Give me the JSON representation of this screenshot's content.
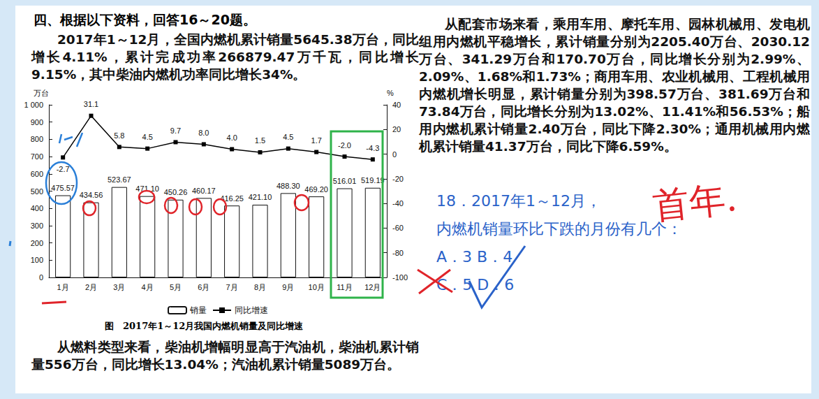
{
  "heading": "四、根据以下资料，回答16～20题。",
  "paragraphs": [
    "2017年1～12月，全国内燃机累计销量5645.38万台，同比增长4.11%，累计完成功率266879.47万千瓦，同比增长9.15%，其中柴油内燃机功率同比增长34%。",
    "从燃料类型来看，柴油机增幅明显高于汽油机，柴油机累计销量556万台，同比增长13.04%；汽油机累计销量5089万台。",
    "从配套市场来看，乘用车用、摩托车用、园林机械用、发电机组用内燃机平稳增长，累计销量分别为2205.40万台、2030.12万台、341.29万台和170.70万台，同比增长分别为2.99%、2.09%、1.68%和1.73%；商用车用、农业机械用、工程机械用内燃机增长明显，累计销量分别为398.57万台、381.69万台和73.84万台，同比增长分别为13.02%、11.41%和56.53%；船用内燃机累计销量2.40万台，同比下降2.30%；通用机械用内燃机累计销量41.37万台，同比下降6.59%。"
  ],
  "chart_data": {
    "type": "bar",
    "caption": "图　2017年1～12月我国内燃机销量及同比增速",
    "y_label": "万台",
    "y2_label": "%",
    "categories": [
      "1月",
      "2月",
      "3月",
      "4月",
      "5月",
      "6月",
      "7月",
      "8月",
      "9月",
      "10月",
      "11月",
      "12月"
    ],
    "ylim": [
      0,
      1000
    ],
    "yticks": [
      0,
      100,
      200,
      300,
      400,
      500,
      600,
      700,
      800,
      900,
      {
        "value": 1000,
        "label": "1 000"
      }
    ],
    "y2lim": [
      -100,
      40
    ],
    "y2ticks": [
      -100,
      -80,
      -60,
      -40,
      -20,
      0,
      20,
      40
    ],
    "grid": false,
    "legend": "bottom",
    "data_labels": true,
    "series": [
      {
        "name": "销量",
        "type": "bar",
        "color": "#ffffff",
        "values": [
          475.57,
          434.56,
          523.67,
          471.1,
          450.26,
          460.17,
          416.25,
          421.1,
          488.3,
          469.2,
          516.01,
          519.19
        ],
        "value_labels": [
          "475.57",
          "434.56",
          "523.67",
          "471.10",
          "450.26",
          "460.17",
          "416.25",
          "421.10",
          "488.30",
          "469.20",
          "516.01",
          "519.19"
        ]
      },
      {
        "name": "同比增速",
        "type": "line",
        "axis": "y2",
        "color": "#000000",
        "marker": "square",
        "values": [
          -2.7,
          31.1,
          5.8,
          4.5,
          9.7,
          8.0,
          4.0,
          1.5,
          4.5,
          1.7,
          -2.0,
          -4.3
        ],
        "value_labels": [
          "-2.7",
          "31.1",
          "5.8",
          "4.5",
          "9.7",
          "8.0",
          "4.0",
          "1.5",
          "4.5",
          "1.7",
          "-2.0",
          "-4.3"
        ]
      }
    ]
  },
  "question": {
    "stem": [
      "18．2017年1～12月，",
      "内燃机销量环比下跌的月份有几个："
    ],
    "options": [
      [
        "A．3",
        "B．4"
      ],
      [
        "C．5",
        "D．6"
      ]
    ]
  },
  "annotations": [
    "首年."
  ]
}
